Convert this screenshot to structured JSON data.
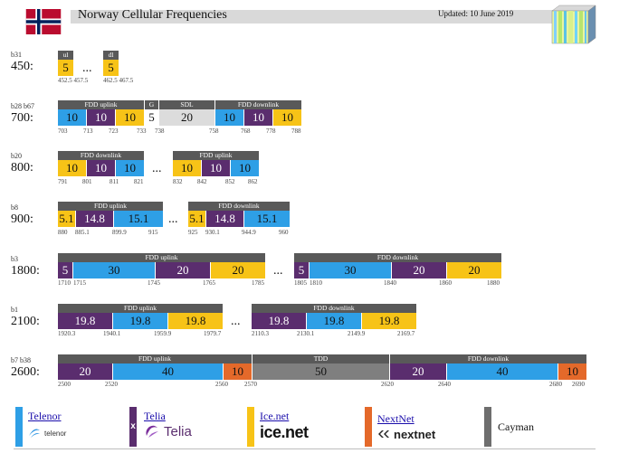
{
  "header": {
    "title": "Norway Cellular Frequencies",
    "updated": "Updated: 10 June 2019"
  },
  "colors": {
    "telenor": "#2e9fe6",
    "telia": "#5a2d6e",
    "ice": "#f7c317",
    "nextnet": "#e4692a",
    "cayman": "#6e6e6e",
    "header_bar": "#595959",
    "sdl": "#dcdcdc",
    "tdd": "#7f7f7f"
  },
  "bands": {
    "b450": {
      "tag": "b31",
      "freq": "450:",
      "ul_label": "ul",
      "dl_label": "dl",
      "ul_value": "5",
      "dl_value": "5",
      "dots": "...",
      "ul_ticks": "452.5 457.5",
      "dl_ticks": "462.5 467.5"
    },
    "b700": {
      "tag": "b28 b67",
      "freq": "700:",
      "headers": [
        "FDD uplink",
        "G",
        "SDL",
        "FDD downlink"
      ],
      "values": [
        "10",
        "10",
        "10",
        "5",
        "20",
        "10",
        "10",
        "10"
      ],
      "ticks": [
        "703",
        "713",
        "723",
        "733",
        "738",
        "758",
        "768",
        "778",
        "788"
      ]
    },
    "b800": {
      "tag": "b20",
      "freq": "800:",
      "headers": [
        "FDD downlink",
        "FDD uplink"
      ],
      "values": [
        "10",
        "10",
        "10",
        "10",
        "10",
        "10"
      ],
      "dots": "...",
      "ticks": [
        "791",
        "801",
        "811",
        "821",
        "832",
        "842",
        "852",
        "862"
      ]
    },
    "b900": {
      "tag": "b8",
      "freq": "900:",
      "headers": [
        "FDD uplink",
        "FDD downlink"
      ],
      "values": [
        "5.1",
        "14.8",
        "15.1",
        "5.1",
        "14.8",
        "15.1"
      ],
      "dots": "...",
      "ticks": [
        "880",
        "885.1",
        "899.9",
        "915",
        "925",
        "930.1",
        "944.9",
        "960"
      ]
    },
    "b1800": {
      "tag": "b3",
      "freq": "1800:",
      "headers": [
        "FDD uplink",
        "FDD downlink"
      ],
      "values": [
        "5",
        "30",
        "20",
        "20",
        "5",
        "30",
        "20",
        "20"
      ],
      "dots": "...",
      "ticks": [
        "1710",
        "1715",
        "1745",
        "1765",
        "1785",
        "1805",
        "1810",
        "1840",
        "1860",
        "1880"
      ]
    },
    "b2100": {
      "tag": "b1",
      "freq": "2100:",
      "headers": [
        "FDD uplink",
        "FDD downlink"
      ],
      "values": [
        "19.8",
        "19.8",
        "19.8",
        "19.8",
        "19.8",
        "19.8"
      ],
      "dots": "...",
      "ticks": [
        "1920.3",
        "1940.1",
        "1959.9",
        "1979.7",
        "2110.3",
        "2130.1",
        "2149.9",
        "2169.7"
      ]
    },
    "b2600": {
      "tag": "b7 b38",
      "freq": "2600:",
      "headers": [
        "FDD uplink",
        "TDD",
        "FDD downlink"
      ],
      "values": [
        "20",
        "40",
        "10",
        "50",
        "20",
        "40",
        "10"
      ],
      "ticks": [
        "2500",
        "2520",
        "2560",
        "2570",
        "2620",
        "2640",
        "2680",
        "2690"
      ]
    }
  },
  "legend": {
    "telenor": {
      "name": "Telenor",
      "logo": "telenor"
    },
    "telia": {
      "name": "Telia",
      "logo": "Telia",
      "marker": "x"
    },
    "ice": {
      "name": "Ice.net",
      "logo": "ice.net"
    },
    "nextnet": {
      "name": "NextNet",
      "logo": "nextnet"
    },
    "cayman": {
      "name": "Cayman"
    }
  }
}
